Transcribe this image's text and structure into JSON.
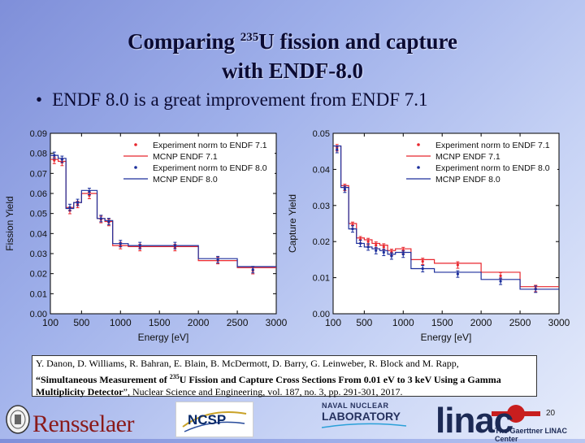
{
  "slide": {
    "title_prefix": "Comparing ",
    "title_sup": "235",
    "title_rest": "U fission and capture",
    "title_line2": "with ENDF-8.0",
    "bullet": "ENDF 8.0 is a great improvement from ENDF 7.1"
  },
  "citation": {
    "authors": "Y. Danon, D. Williams, R. Bahran, E. Blain, B. McDermott, D. Barry, G. Leinweber, R. Block and M. Rapp,",
    "title_open": "“Simultaneous Measurement of ",
    "title_sup": "235",
    "title_close": "U Fission and Capture Cross Sections From 0.01 eV to 3 keV Using a Gamma Multiplicity Detector",
    "journal": "”, Nuclear Science and Engineering, vol. 187, no. 3, pp. 291-301, 2017."
  },
  "footer": {
    "rensselaer": "Rensselaer",
    "ncsp": "NCSP",
    "nnl_line1": "NAVAL NUCLEAR",
    "nnl_line2": "LABORATORY",
    "page_number": "20",
    "linac": "linac",
    "linac_sub": "The Gaerttner LINAC Center"
  },
  "colors": {
    "endf71": "#e8262d",
    "endf80": "#1c2f9c",
    "plot_bg": "#ffffff"
  },
  "chart_data": [
    {
      "type": "line",
      "xlabel": "Energy [eV]",
      "ylabel": "Fission Yield",
      "xlim": [
        100,
        3000
      ],
      "ylim": [
        0,
        0.09
      ],
      "xticks": [
        100,
        500,
        1000,
        1500,
        2000,
        2500,
        3000
      ],
      "yticks": [
        0.0,
        0.01,
        0.02,
        0.03,
        0.04,
        0.05,
        0.06,
        0.07,
        0.08,
        0.09
      ],
      "ytick_labels": [
        "0.00",
        "0.01",
        "0.02",
        "0.03",
        "0.04",
        "0.05",
        "0.06",
        "0.07",
        "0.08",
        "0.09"
      ],
      "legend_placement": "top-right",
      "series": [
        {
          "name": "Experiment norm to ENDF 7.1",
          "kind": "points",
          "color": "red",
          "x": [
            150,
            250,
            350,
            450,
            600,
            750,
            850,
            1000,
            1250,
            1700,
            2250,
            2700
          ],
          "y": [
            0.0765,
            0.0755,
            0.0515,
            0.0545,
            0.059,
            0.047,
            0.0455,
            0.034,
            0.033,
            0.033,
            0.0265,
            0.0215
          ]
        },
        {
          "name": "MCNP ENDF 7.1",
          "kind": "step",
          "color": "red",
          "edges": [
            100,
            200,
            300,
            400,
            500,
            700,
            800,
            900,
            1100,
            1400,
            2000,
            2500,
            3000
          ],
          "values": [
            0.077,
            0.076,
            0.053,
            0.0555,
            0.06,
            0.0475,
            0.046,
            0.034,
            0.0335,
            0.0335,
            0.0265,
            0.023
          ]
        },
        {
          "name": "Experiment norm to ENDF 8.0",
          "kind": "points",
          "color": "blue",
          "x": [
            150,
            250,
            350,
            450,
            600,
            750,
            850,
            1000,
            1250,
            1700,
            2250,
            2700
          ],
          "y": [
            0.079,
            0.077,
            0.053,
            0.0555,
            0.061,
            0.0475,
            0.046,
            0.035,
            0.034,
            0.034,
            0.027,
            0.022
          ]
        },
        {
          "name": "MCNP ENDF 8.0",
          "kind": "step",
          "color": "blue",
          "edges": [
            100,
            200,
            300,
            400,
            500,
            700,
            800,
            900,
            1100,
            1400,
            2000,
            2500,
            3000
          ],
          "values": [
            0.079,
            0.0775,
            0.0525,
            0.0555,
            0.0615,
            0.0475,
            0.0465,
            0.035,
            0.034,
            0.034,
            0.0275,
            0.0235
          ]
        }
      ]
    },
    {
      "type": "line",
      "xlabel": "Energy [eV]",
      "ylabel": "Capture Yield",
      "xlim": [
        100,
        3000
      ],
      "ylim": [
        0,
        0.05
      ],
      "xticks": [
        100,
        500,
        1000,
        1500,
        2000,
        2500,
        3000
      ],
      "yticks": [
        0.0,
        0.01,
        0.02,
        0.03,
        0.04,
        0.05
      ],
      "ytick_labels": [
        "0.00",
        "0.01",
        "0.02",
        "0.03",
        "0.04",
        "0.05"
      ],
      "legend_placement": "top-right",
      "series": [
        {
          "name": "Experiment norm to ENDF 7.1",
          "kind": "points",
          "color": "red",
          "x": [
            150,
            250,
            350,
            450,
            550,
            650,
            750,
            850,
            1000,
            1250,
            1700,
            2250,
            2700
          ],
          "y": [
            0.046,
            0.035,
            0.0245,
            0.0205,
            0.02,
            0.019,
            0.0185,
            0.017,
            0.0175,
            0.0145,
            0.0135,
            0.0105,
            0.007
          ]
        },
        {
          "name": "MCNP ENDF 7.1",
          "kind": "step",
          "color": "red",
          "edges": [
            100,
            200,
            300,
            400,
            500,
            600,
            700,
            800,
            900,
            1100,
            1400,
            2000,
            2500,
            3000
          ],
          "values": [
            0.0465,
            0.0355,
            0.025,
            0.021,
            0.0205,
            0.0195,
            0.019,
            0.0175,
            0.018,
            0.015,
            0.014,
            0.0115,
            0.0075
          ]
        },
        {
          "name": "Experiment norm to ENDF 8.0",
          "kind": "points",
          "color": "blue",
          "x": [
            150,
            250,
            350,
            450,
            550,
            650,
            750,
            850,
            1000,
            1250,
            1700,
            2250,
            2700
          ],
          "y": [
            0.0455,
            0.0345,
            0.0235,
            0.0195,
            0.0185,
            0.0175,
            0.017,
            0.016,
            0.0165,
            0.0125,
            0.011,
            0.009,
            0.0068
          ]
        },
        {
          "name": "MCNP ENDF 8.0",
          "kind": "step",
          "color": "blue",
          "edges": [
            100,
            200,
            300,
            400,
            500,
            600,
            700,
            800,
            900,
            1100,
            1400,
            2000,
            2500,
            3000
          ],
          "values": [
            0.0465,
            0.035,
            0.0235,
            0.0195,
            0.0185,
            0.018,
            0.0175,
            0.0165,
            0.017,
            0.0125,
            0.0115,
            0.0095,
            0.0068
          ]
        }
      ]
    }
  ]
}
